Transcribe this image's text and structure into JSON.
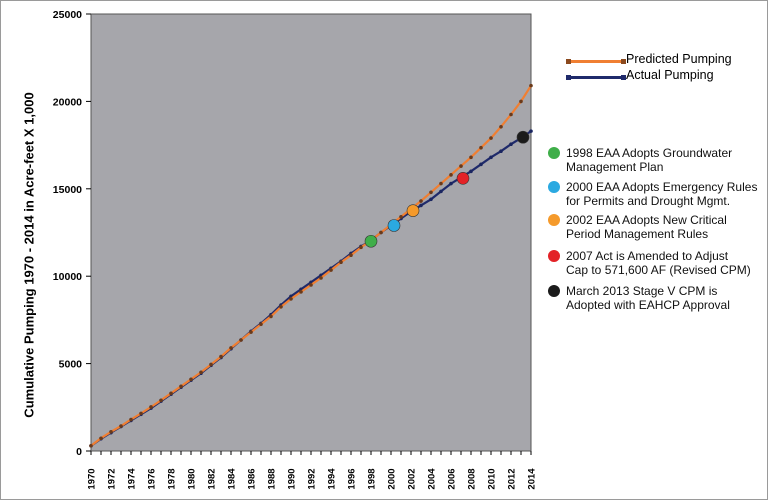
{
  "chart_data": {
    "type": "line",
    "ylabel": "Cumulative Pumping 1970 - 2014 in Acre-feet X 1,000",
    "ylim": [
      0,
      25000
    ],
    "yticks": [
      0,
      5000,
      10000,
      15000,
      20000,
      25000
    ],
    "xlim": [
      1970,
      2014
    ],
    "xticks": [
      1970,
      1972,
      1974,
      1976,
      1978,
      1980,
      1982,
      1984,
      1986,
      1988,
      1990,
      1992,
      1994,
      1996,
      1998,
      2000,
      2002,
      2004,
      2006,
      2008,
      2010,
      2012,
      2014
    ],
    "grid": false,
    "legend_position": "top-right",
    "series": [
      {
        "name": "Predicted Pumping",
        "color": "#f07f32",
        "x": [
          1970,
          1971,
          1972,
          1973,
          1974,
          1975,
          1976,
          1977,
          1978,
          1979,
          1980,
          1981,
          1982,
          1983,
          1984,
          1985,
          1986,
          1987,
          1988,
          1989,
          1990,
          1991,
          1992,
          1993,
          1994,
          1995,
          1996,
          1997,
          1998,
          1999,
          2000,
          2001,
          2002,
          2003,
          2004,
          2005,
          2006,
          2007,
          2008,
          2009,
          2010,
          2011,
          2012,
          2013,
          2014
        ],
        "y": [
          300,
          730,
          1100,
          1430,
          1800,
          2150,
          2520,
          2900,
          3300,
          3700,
          4100,
          4500,
          4950,
          5400,
          5900,
          6350,
          6800,
          7250,
          7700,
          8250,
          8700,
          9100,
          9500,
          9900,
          10350,
          10800,
          11200,
          11650,
          12050,
          12500,
          12950,
          13400,
          13850,
          14300,
          14800,
          15300,
          15800,
          16300,
          16800,
          17350,
          17900,
          18550,
          19250,
          20000,
          20900
        ]
      },
      {
        "name": "Actual Pumping",
        "color": "#1f2a6b",
        "x": [
          1970,
          1971,
          1972,
          1973,
          1974,
          1975,
          1976,
          1977,
          1978,
          1979,
          1980,
          1981,
          1982,
          1983,
          1984,
          1985,
          1986,
          1987,
          1988,
          1989,
          1990,
          1991,
          1992,
          1993,
          1994,
          1995,
          1996,
          1997,
          1998,
          1999,
          2000,
          2001,
          2002,
          2003,
          2004,
          2005,
          2006,
          2007,
          2008,
          2009,
          2010,
          2011,
          2012,
          2013,
          2014
        ],
        "y": [
          300,
          700,
          1050,
          1400,
          1750,
          2100,
          2450,
          2850,
          3250,
          3650,
          4050,
          4450,
          4900,
          5350,
          5850,
          6350,
          6850,
          7300,
          7800,
          8350,
          8850,
          9250,
          9650,
          10050,
          10450,
          10850,
          11300,
          11700,
          12050,
          12500,
          12900,
          13300,
          13700,
          14050,
          14400,
          14850,
          15300,
          15650,
          16000,
          16400,
          16800,
          17150,
          17550,
          17900,
          18300
        ]
      }
    ],
    "events": [
      {
        "year": 1998,
        "value": 12000,
        "color": "#3fae49",
        "text": "1998 EAA Adopts Groundwater\nManagement Plan"
      },
      {
        "year": 2000.3,
        "value": 12900,
        "color": "#2ba9e1",
        "text": "2000 EAA Adopts Emergency Rules\nfor Permits and Drought Mgmt."
      },
      {
        "year": 2002.2,
        "value": 13750,
        "color": "#f59a2b",
        "text": "2002 EAA Adopts New Critical\nPeriod Management Rules"
      },
      {
        "year": 2007.2,
        "value": 15600,
        "color": "#e32227",
        "text": "2007 Act is Amended to Adjust\nCap to 571,600 AF (Revised CPM)"
      },
      {
        "year": 2013.2,
        "value": 17950,
        "color": "#1b1b1b",
        "text": "March 2013 Stage V CPM is\nAdopted with EAHCP Approval"
      }
    ]
  }
}
